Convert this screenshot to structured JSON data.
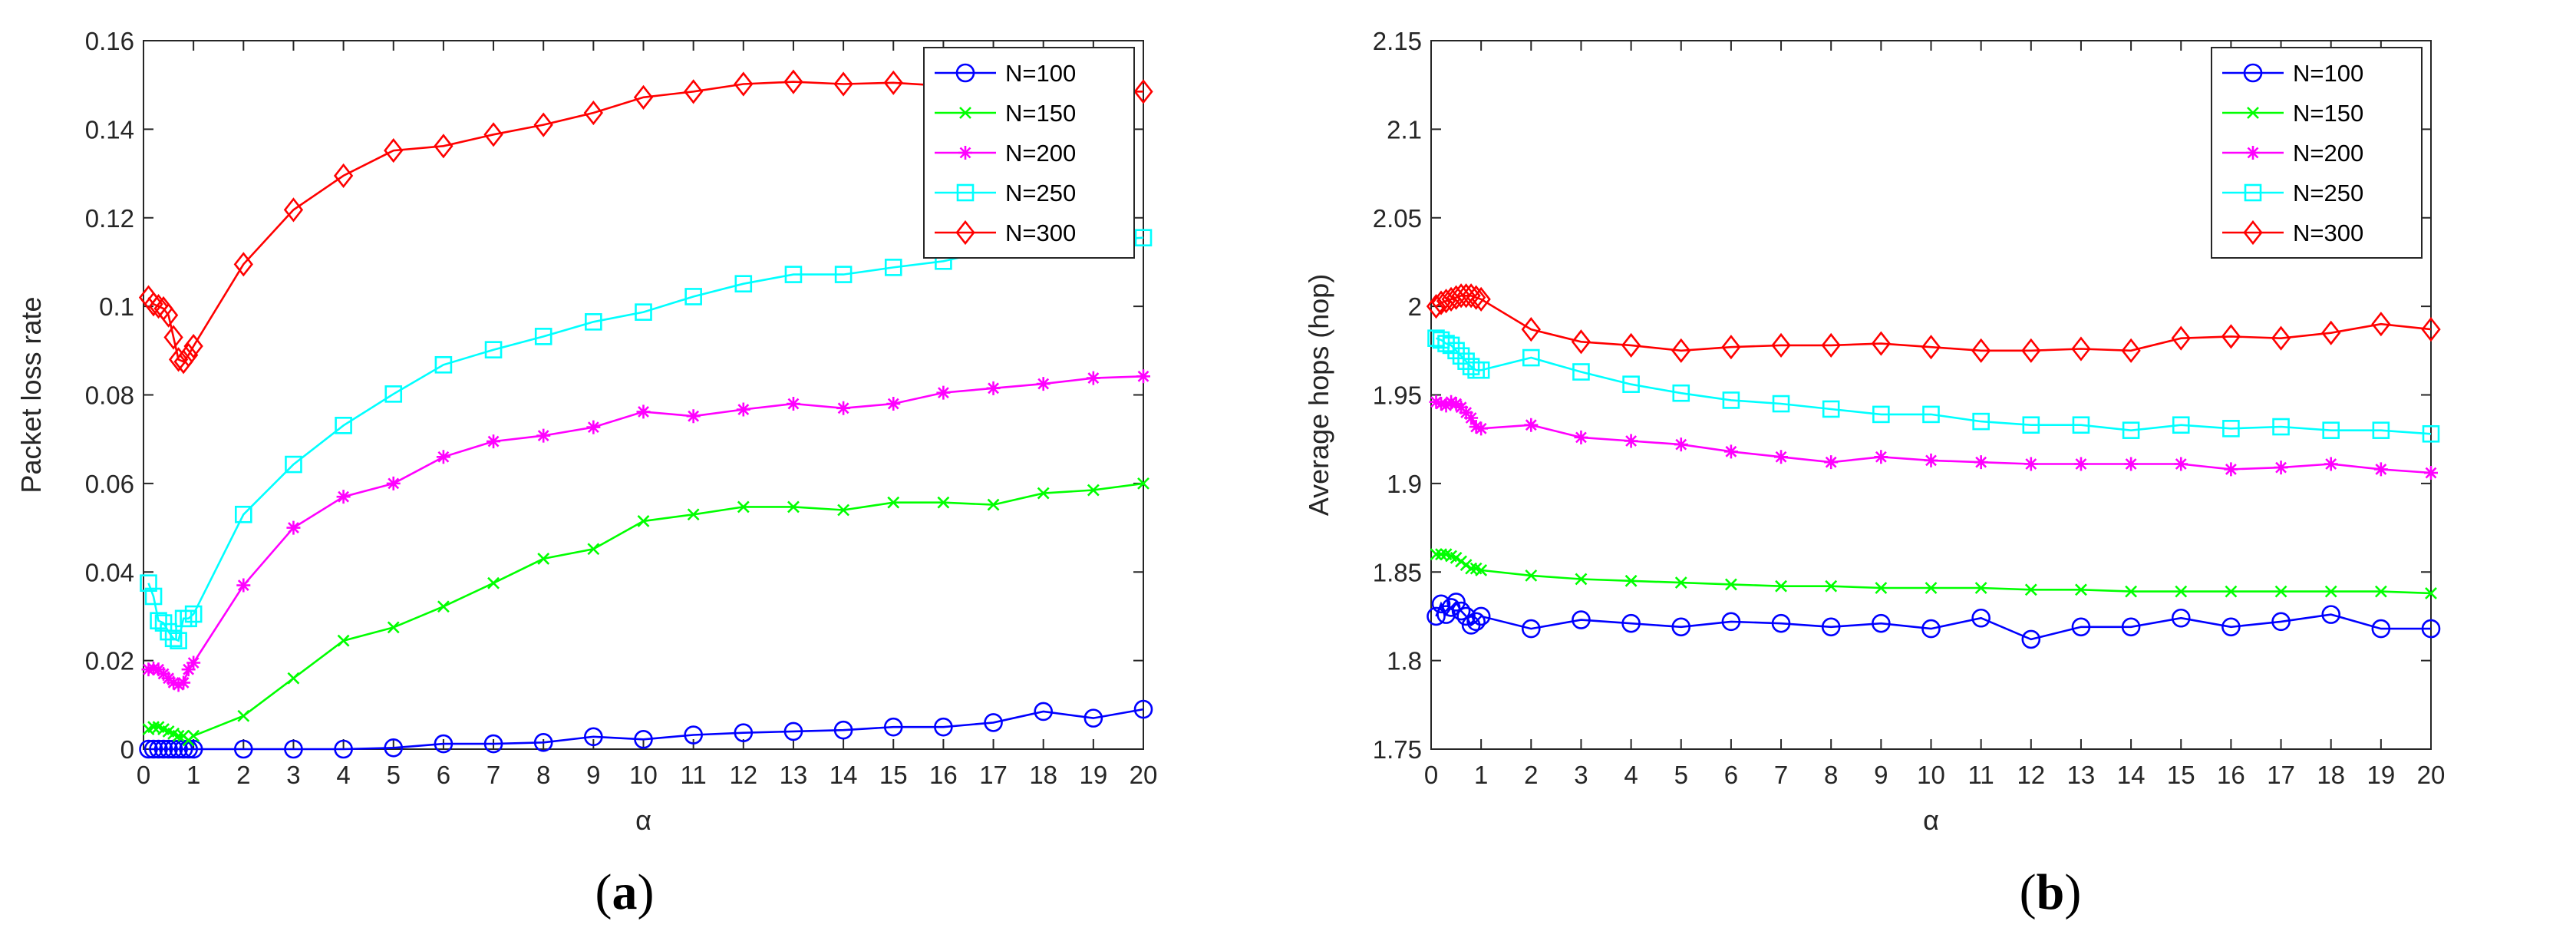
{
  "panels": [
    {
      "caption_open": "(",
      "caption_letter": "a",
      "caption_close": ")",
      "chart_data": {
        "type": "line",
        "xlabel": "α",
        "ylabel": "Packet loss rate",
        "xlim": [
          0,
          20
        ],
        "ylim": [
          0,
          0.16
        ],
        "xticks": [
          0,
          1,
          2,
          3,
          4,
          5,
          6,
          7,
          8,
          9,
          10,
          11,
          12,
          13,
          14,
          15,
          16,
          17,
          18,
          19,
          20
        ],
        "yticks": [
          0,
          0.02,
          0.04,
          0.06,
          0.08,
          0.1,
          0.12,
          0.14,
          0.16
        ],
        "ytick_labels": [
          "0",
          "0.02",
          "0.04",
          "0.06",
          "0.08",
          "0.1",
          "0.12",
          "0.14",
          "0.16"
        ],
        "grid": false,
        "legend_position": "top-right",
        "x": [
          0.1,
          0.2,
          0.3,
          0.4,
          0.5,
          0.6,
          0.7,
          0.8,
          0.9,
          1,
          2,
          3,
          4,
          5,
          6,
          7,
          8,
          9,
          10,
          11,
          12,
          13,
          14,
          15,
          16,
          17,
          18,
          19,
          20
        ],
        "series": [
          {
            "name": "N=100",
            "color": "#0000ff",
            "marker": "circle",
            "values": [
              0,
              0,
              0,
              0,
              0,
              0,
              0,
              0,
              0,
              0,
              0,
              0,
              0,
              0.0003,
              0.0012,
              0.0012,
              0.0015,
              0.0028,
              0.0022,
              0.0032,
              0.0037,
              0.004,
              0.0043,
              0.005,
              0.005,
              0.006,
              0.0085,
              0.007,
              0.009
            ]
          },
          {
            "name": "N=150",
            "color": "#00ff00",
            "marker": "x",
            "values": [
              0.0045,
              0.005,
              0.005,
              0.0045,
              0.004,
              0.0035,
              0.003,
              0.003,
              0.002,
              0.003,
              0.0075,
              0.016,
              0.0245,
              0.0275,
              0.0322,
              0.0375,
              0.043,
              0.0452,
              0.0515,
              0.053,
              0.0547,
              0.0547,
              0.054,
              0.0557,
              0.0557,
              0.0552,
              0.0578,
              0.0585,
              0.06
            ]
          },
          {
            "name": "N=200",
            "color": "#ff00ff",
            "marker": "star",
            "values": [
              0.018,
              0.0182,
              0.018,
              0.017,
              0.016,
              0.015,
              0.0145,
              0.015,
              0.018,
              0.0195,
              0.037,
              0.05,
              0.057,
              0.06,
              0.066,
              0.0695,
              0.0708,
              0.0727,
              0.0762,
              0.0752,
              0.0767,
              0.078,
              0.077,
              0.078,
              0.0805,
              0.0815,
              0.0825,
              0.0838,
              0.0842
            ]
          },
          {
            "name": "N=250",
            "color": "#00ffff",
            "marker": "square",
            "values": [
              0.0375,
              0.0345,
              0.029,
              0.0285,
              0.0265,
              0.025,
              0.0245,
              0.0295,
              0.0295,
              0.0305,
              0.053,
              0.0643,
              0.0731,
              0.0802,
              0.0868,
              0.0902,
              0.0932,
              0.0965,
              0.0987,
              0.1022,
              0.1051,
              0.1072,
              0.1072,
              0.1088,
              0.1102,
              0.1128,
              0.1138,
              0.1148,
              0.1155
            ]
          },
          {
            "name": "N=300",
            "color": "#ff0000",
            "marker": "diamond",
            "values": [
              0.102,
              0.1005,
              0.1,
              0.0995,
              0.098,
              0.093,
              0.088,
              0.0875,
              0.089,
              0.091,
              0.1095,
              0.1218,
              0.1295,
              0.1352,
              0.1362,
              0.1388,
              0.141,
              0.1437,
              0.1472,
              0.1485,
              0.1502,
              0.1507,
              0.1502,
              0.1505,
              0.1498,
              0.149,
              0.1482,
              0.1485,
              0.1485
            ]
          }
        ]
      }
    },
    {
      "caption_open": "(",
      "caption_letter": "b",
      "caption_close": ")",
      "chart_data": {
        "type": "line",
        "xlabel": "α",
        "ylabel": "Average hops (hop)",
        "xlim": [
          0,
          20
        ],
        "ylim": [
          1.75,
          2.15
        ],
        "xticks": [
          0,
          1,
          2,
          3,
          4,
          5,
          6,
          7,
          8,
          9,
          10,
          11,
          12,
          13,
          14,
          15,
          16,
          17,
          18,
          19,
          20
        ],
        "yticks": [
          1.75,
          1.8,
          1.85,
          1.9,
          1.95,
          2,
          2.05,
          2.1,
          2.15
        ],
        "ytick_labels": [
          "1.75",
          "1.8",
          "1.85",
          "1.9",
          "1.95",
          "2",
          "2.05",
          "2.1",
          "2.15"
        ],
        "grid": false,
        "legend_position": "top-right",
        "x": [
          0.1,
          0.2,
          0.3,
          0.4,
          0.5,
          0.6,
          0.7,
          0.8,
          0.9,
          1,
          2,
          3,
          4,
          5,
          6,
          7,
          8,
          9,
          10,
          11,
          12,
          13,
          14,
          15,
          16,
          17,
          18,
          19,
          20
        ],
        "series": [
          {
            "name": "N=100",
            "color": "#0000ff",
            "marker": "circle",
            "values": [
              1.825,
              1.832,
              1.826,
              1.83,
              1.833,
              1.828,
              1.825,
              1.82,
              1.822,
              1.825,
              1.818,
              1.823,
              1.821,
              1.819,
              1.822,
              1.821,
              1.819,
              1.821,
              1.818,
              1.824,
              1.812,
              1.819,
              1.819,
              1.824,
              1.819,
              1.822,
              1.826,
              1.818,
              1.818
            ]
          },
          {
            "name": "N=150",
            "color": "#00ff00",
            "marker": "x",
            "values": [
              1.86,
              1.86,
              1.86,
              1.859,
              1.858,
              1.856,
              1.854,
              1.852,
              1.852,
              1.851,
              1.848,
              1.846,
              1.845,
              1.844,
              1.843,
              1.842,
              1.842,
              1.841,
              1.841,
              1.841,
              1.84,
              1.84,
              1.839,
              1.839,
              1.839,
              1.839,
              1.839,
              1.839,
              1.838
            ]
          },
          {
            "name": "N=200",
            "color": "#ff00ff",
            "marker": "star",
            "values": [
              1.946,
              1.945,
              1.944,
              1.946,
              1.945,
              1.943,
              1.94,
              1.937,
              1.932,
              1.931,
              1.933,
              1.926,
              1.924,
              1.922,
              1.918,
              1.915,
              1.912,
              1.915,
              1.913,
              1.912,
              1.911,
              1.911,
              1.911,
              1.911,
              1.908,
              1.909,
              1.911,
              1.908,
              1.906
            ]
          },
          {
            "name": "N=250",
            "color": "#00ffff",
            "marker": "square",
            "values": [
              1.982,
              1.981,
              1.979,
              1.978,
              1.975,
              1.972,
              1.969,
              1.966,
              1.964,
              1.964,
              1.971,
              1.963,
              1.956,
              1.951,
              1.947,
              1.945,
              1.942,
              1.939,
              1.939,
              1.935,
              1.933,
              1.933,
              1.93,
              1.933,
              1.931,
              1.932,
              1.93,
              1.93,
              1.928
            ]
          },
          {
            "name": "N=300",
            "color": "#ff0000",
            "marker": "diamond",
            "values": [
              2.0,
              2.002,
              2.003,
              2.004,
              2.005,
              2.006,
              2.006,
              2.006,
              2.005,
              2.004,
              1.987,
              1.98,
              1.978,
              1.975,
              1.977,
              1.978,
              1.978,
              1.979,
              1.977,
              1.975,
              1.975,
              1.976,
              1.975,
              1.982,
              1.983,
              1.982,
              1.985,
              1.99,
              1.987
            ]
          }
        ]
      }
    }
  ]
}
